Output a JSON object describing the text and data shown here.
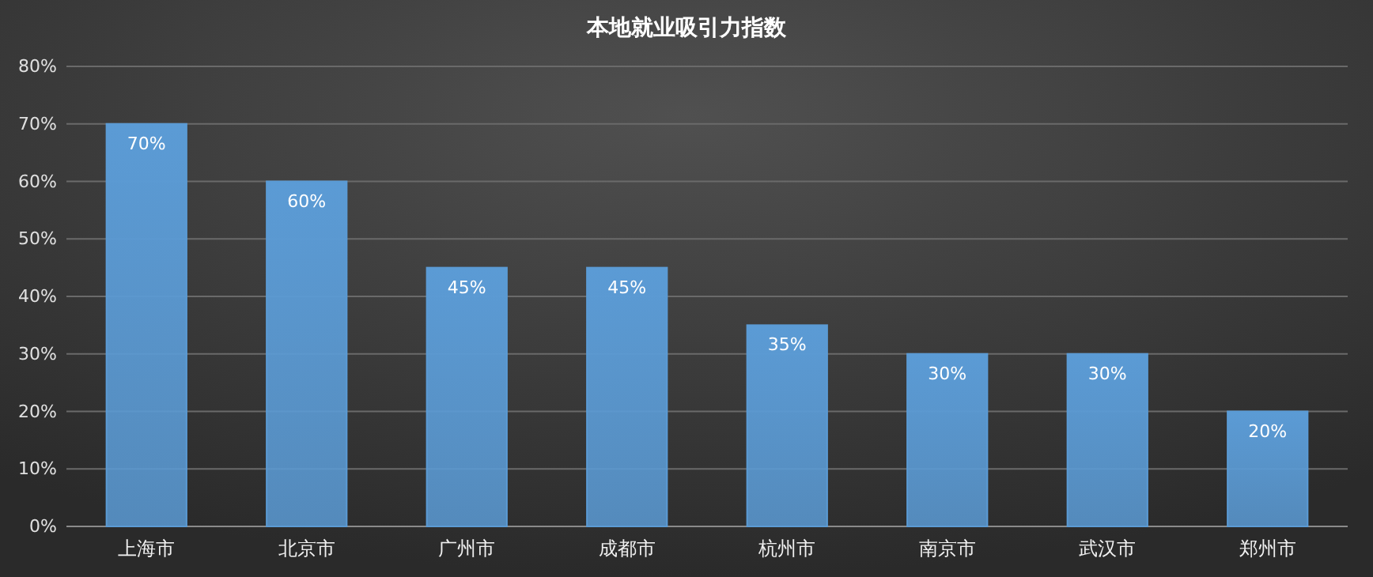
{
  "chart_data": {
    "type": "bar",
    "title": "本地就业吸引力指数",
    "categories": [
      "上海市",
      "北京市",
      "广州市",
      "成都市",
      "杭州市",
      "南京市",
      "武汉市",
      "郑州市"
    ],
    "values": [
      70,
      60,
      45,
      45,
      35,
      30,
      30,
      20
    ],
    "value_labels": [
      "70%",
      "60%",
      "45%",
      "45%",
      "35%",
      "30%",
      "30%",
      "20%"
    ],
    "color": "#5b9bd5",
    "ylim": [
      0,
      80
    ],
    "yticks": [
      {
        "value": 0,
        "label": "0%"
      },
      {
        "value": 10,
        "label": "10%"
      },
      {
        "value": 20,
        "label": "20%"
      },
      {
        "value": 30,
        "label": "30%"
      },
      {
        "value": 40,
        "label": "40%"
      },
      {
        "value": 50,
        "label": "50%"
      },
      {
        "value": 60,
        "label": "60%"
      },
      {
        "value": 70,
        "label": "70%"
      },
      {
        "value": 80,
        "label": "80%"
      }
    ],
    "grid": "y"
  }
}
